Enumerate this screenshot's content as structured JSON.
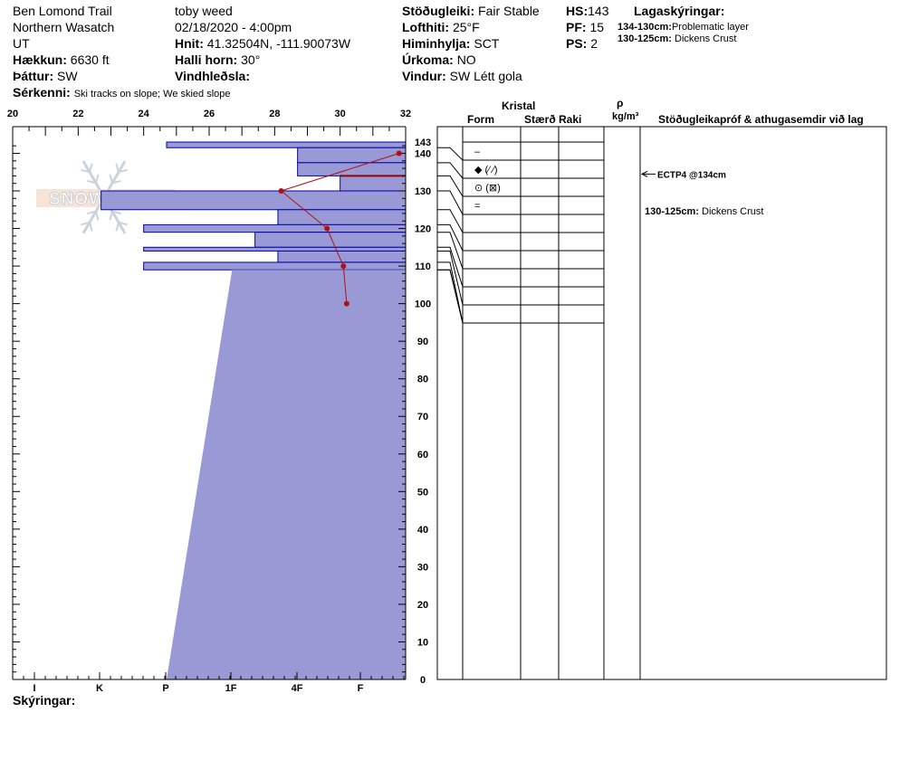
{
  "header": {
    "location": "Ben Lomond Trail",
    "range": "Northern Wasatch",
    "state": "UT",
    "elevation_label": "Hækkun:",
    "elevation_value": "6630 ft",
    "aspect_label": "Þáttur:",
    "aspect_value": "SW",
    "features_label": "Sérkenni:",
    "features_value": "Ski tracks on slope; We skied slope",
    "observer": "toby weed",
    "datetime": "02/18/2020 - 4:00pm",
    "coords_label": "Hnit:",
    "coords_value": "41.32504N, -111.90073W",
    "slope_label": "Halli horn:",
    "slope_value": "30°",
    "wind_loading_label": "Vindhleðsla:",
    "wind_loading_value": "",
    "stability_label": "Stöðugleiki:",
    "stability_value": "Fair Stable",
    "air_temp_label": "Lofthiti:",
    "air_temp_value": "25°F",
    "sky_label": "Himinhylja:",
    "sky_value": "SCT",
    "precip_label": "Úrkoma:",
    "precip_value": "NO",
    "wind_label": "Vindur:",
    "wind_value": "SW Létt gola",
    "hs_label": "HS:",
    "hs_value": "143",
    "pf_label": "PF:",
    "pf_value": "15",
    "ps_label": "PS:",
    "ps_value": "2",
    "layer_notes_label": "Lagaskýringar:",
    "layer_notes": [
      {
        "range": "134-130cm:",
        "text": "Problematic layer"
      },
      {
        "range": "130-125cm:",
        "text": "Dickens Crust"
      }
    ]
  },
  "columns": {
    "crystal": "Kristal",
    "form": "Form",
    "size": "Stærð",
    "moisture": "Raki",
    "density_symbol": "ρ",
    "density_unit": "kg/m³",
    "tests": "Stöðugleikapróf & athugasemdir við lag"
  },
  "footer": {
    "notes_label": "Skýringar:"
  },
  "logo_text": "SNOWPILOT",
  "colors": {
    "hardness_fill": "#9999d6",
    "hardness_stroke": "#0000aa",
    "temp_line": "#b01010",
    "problem_line": "#990000"
  },
  "chart_data": {
    "type": "snow-profile",
    "temperature_axis": {
      "ticks": [
        "20",
        "22",
        "24",
        "26",
        "28",
        "30",
        "32"
      ],
      "range": [
        20,
        32
      ]
    },
    "height_axis": {
      "range": [
        0,
        143
      ],
      "ticks": [
        0,
        10,
        20,
        30,
        40,
        50,
        60,
        70,
        80,
        90,
        100,
        110,
        120,
        130,
        140
      ],
      "top_label": "143"
    },
    "hardness_axis": {
      "labels": [
        "I",
        "K",
        "P",
        "1F",
        "4F",
        "F"
      ]
    },
    "hardness_profile": [
      {
        "top": 143,
        "bottom": 141.5,
        "hardness_temp_scale": 24.7
      },
      {
        "top": 141.5,
        "bottom": 137.5,
        "hardness_temp_scale": 28.7
      },
      {
        "top": 137.5,
        "bottom": 134,
        "hardness_temp_scale": 28.7
      },
      {
        "top": 134,
        "bottom": 130,
        "hardness_temp_scale": 30.0
      },
      {
        "top": 130,
        "bottom": 125,
        "hardness_temp_scale": 22.7
      },
      {
        "top": 125,
        "bottom": 121,
        "hardness_temp_scale": 28.1
      },
      {
        "top": 121,
        "bottom": 119,
        "hardness_temp_scale": 24.0
      },
      {
        "top": 119,
        "bottom": 115,
        "hardness_temp_scale": 27.4
      },
      {
        "top": 115,
        "bottom": 114,
        "hardness_temp_scale": 24.0
      },
      {
        "top": 114,
        "bottom": 111,
        "hardness_temp_scale": 28.1
      },
      {
        "top": 111,
        "bottom": 109,
        "hardness_temp_scale": 24.0
      },
      {
        "top": 109,
        "bottom": 0,
        "hardness_temp_scale_top": 26.7,
        "hardness_temp_scale_bottom": 24.7
      }
    ],
    "temperature_profile": [
      {
        "height": 140,
        "temp": 31.8
      },
      {
        "height": 130,
        "temp": 28.2
      },
      {
        "height": 120,
        "temp": 29.6
      },
      {
        "height": 110,
        "temp": 30.1
      },
      {
        "height": 100,
        "temp": 30.2
      }
    ],
    "problem_layer_height": 134,
    "layer_rows": [
      {
        "form": "–",
        "size": "",
        "moisture": ""
      },
      {
        "form": "◆ (⁄ ⁄)",
        "size": "",
        "moisture": ""
      },
      {
        "form": "⊙ (⊠)",
        "size": "",
        "moisture": ""
      },
      {
        "form": "=",
        "size": "",
        "moisture": ""
      }
    ],
    "stability_tests": [
      {
        "text": "ECTP4 @134cm",
        "height": 134
      }
    ],
    "comments": [
      {
        "text": "130-125cm: Dickens Crust"
      }
    ]
  }
}
